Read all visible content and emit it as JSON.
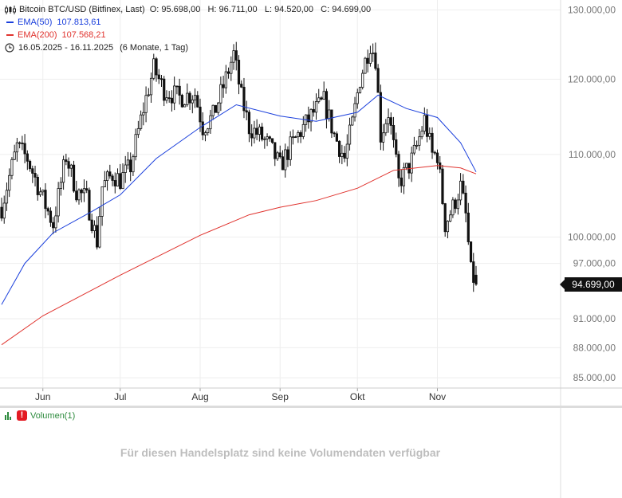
{
  "legend": {
    "title": "Bitcoin BTC/USD (Bitfinex, Last)",
    "ohlc": "O: 95.698,00   H: 96.711,00   L: 94.520,00   C: 94.699,00",
    "ema50_label": "EMA(50)",
    "ema50_value": "107.813,61",
    "ema200_label": "EMA(200)",
    "ema200_value": "107.568,21",
    "range": "16.05.2025 - 16.11.2025",
    "range_detail": "(6 Monate, 1 Tag)"
  },
  "last_price_label": "94.699,00",
  "volume": {
    "label": "Volumen(1)",
    "message": "Für diesen Handelsplatz sind keine Volumendaten verfügbar"
  },
  "colors": {
    "ema50": "#1a3fdc",
    "ema200": "#e0332e",
    "candle": "#111111",
    "grid": "#eeeeee",
    "volume_icon": "#2e8b3e"
  },
  "chart_data": {
    "type": "candlestick",
    "title": "Bitcoin BTC/USD (Bitfinex, Last)",
    "y_scale": "log",
    "ylim": [
      84000,
      131000
    ],
    "y_ticks": [
      130000,
      120000,
      110000,
      100000,
      97000,
      91000,
      88000,
      85000
    ],
    "y_tick_labels": [
      "130.000,00",
      "120.000,00",
      "110.000,00",
      "100.000,00",
      "97.000,00",
      "91.000,00",
      "88.000,00",
      "85.000,00"
    ],
    "x_range": [
      "2025-05-16",
      "2025-11-16"
    ],
    "x_ticks": [
      "2025-06-01",
      "2025-07-01",
      "2025-08-01",
      "2025-09-01",
      "2025-10-01",
      "2025-11-01"
    ],
    "x_tick_labels": [
      "Jun",
      "Jul",
      "Aug",
      "Sep",
      "Okt",
      "Nov"
    ],
    "grid": true,
    "anchors": [
      [
        "2025-05-16",
        103500
      ],
      [
        "2025-05-22",
        111000
      ],
      [
        "2025-05-26",
        109500
      ],
      [
        "2025-06-01",
        104500
      ],
      [
        "2025-06-05",
        101500
      ],
      [
        "2025-06-10",
        109800
      ],
      [
        "2025-06-14",
        105500
      ],
      [
        "2025-06-18",
        104500
      ],
      [
        "2025-06-22",
        99500
      ],
      [
        "2025-06-24",
        106000
      ],
      [
        "2025-06-28",
        107500
      ],
      [
        "2025-07-01",
        106800
      ],
      [
        "2025-07-05",
        108500
      ],
      [
        "2025-07-10",
        116000
      ],
      [
        "2025-07-14",
        121500
      ],
      [
        "2025-07-18",
        118500
      ],
      [
        "2025-07-24",
        117500
      ],
      [
        "2025-07-30",
        118000
      ],
      [
        "2025-08-02",
        113500
      ],
      [
        "2025-08-06",
        115000
      ],
      [
        "2025-08-10",
        119000
      ],
      [
        "2025-08-14",
        123500
      ],
      [
        "2025-08-17",
        117500
      ],
      [
        "2025-08-20",
        113500
      ],
      [
        "2025-08-24",
        112500
      ],
      [
        "2025-08-28",
        111000
      ],
      [
        "2025-09-01",
        108500
      ],
      [
        "2025-09-05",
        111000
      ],
      [
        "2025-09-10",
        113500
      ],
      [
        "2025-09-14",
        115500
      ],
      [
        "2025-09-18",
        117000
      ],
      [
        "2025-09-22",
        112500
      ],
      [
        "2025-09-26",
        109500
      ],
      [
        "2025-09-29",
        114000
      ],
      [
        "2025-10-02",
        120000
      ],
      [
        "2025-10-06",
        125000
      ],
      [
        "2025-10-08",
        123000
      ],
      [
        "2025-10-10",
        112500
      ],
      [
        "2025-10-13",
        115500
      ],
      [
        "2025-10-17",
        106500
      ],
      [
        "2025-10-21",
        108500
      ],
      [
        "2025-10-24",
        111000
      ],
      [
        "2025-10-27",
        114500
      ],
      [
        "2025-10-30",
        110000
      ],
      [
        "2025-11-01",
        110000
      ],
      [
        "2025-11-04",
        101500
      ],
      [
        "2025-11-07",
        103500
      ],
      [
        "2025-11-10",
        106000
      ],
      [
        "2025-11-12",
        102500
      ],
      [
        "2025-11-14",
        96000
      ],
      [
        "2025-11-16",
        94699
      ]
    ],
    "last_candle": {
      "date": "2025-11-16",
      "open": 95698,
      "high": 96711,
      "low": 94520,
      "close": 94699
    },
    "series": [
      {
        "name": "EMA(50)",
        "last_value": 107813.61,
        "points": [
          [
            "2025-05-16",
            92500
          ],
          [
            "2025-05-25",
            97000
          ],
          [
            "2025-06-05",
            100500
          ],
          [
            "2025-06-20",
            103000
          ],
          [
            "2025-07-01",
            105000
          ],
          [
            "2025-07-15",
            109500
          ],
          [
            "2025-08-01",
            113500
          ],
          [
            "2025-08-15",
            116500
          ],
          [
            "2025-09-01",
            115000
          ],
          [
            "2025-09-15",
            114300
          ],
          [
            "2025-10-01",
            115500
          ],
          [
            "2025-10-09",
            117800
          ],
          [
            "2025-10-20",
            116000
          ],
          [
            "2025-11-01",
            114800
          ],
          [
            "2025-11-10",
            111500
          ],
          [
            "2025-11-16",
            107813.61
          ]
        ]
      },
      {
        "name": "EMA(200)",
        "last_value": 107568.21,
        "points": [
          [
            "2025-05-16",
            88300
          ],
          [
            "2025-06-01",
            91300
          ],
          [
            "2025-07-01",
            95700
          ],
          [
            "2025-08-01",
            100200
          ],
          [
            "2025-08-20",
            102600
          ],
          [
            "2025-09-01",
            103500
          ],
          [
            "2025-09-15",
            104300
          ],
          [
            "2025-10-01",
            105800
          ],
          [
            "2025-10-15",
            108000
          ],
          [
            "2025-11-01",
            108600
          ],
          [
            "2025-11-10",
            108300
          ],
          [
            "2025-11-16",
            107568.21
          ]
        ]
      }
    ]
  }
}
